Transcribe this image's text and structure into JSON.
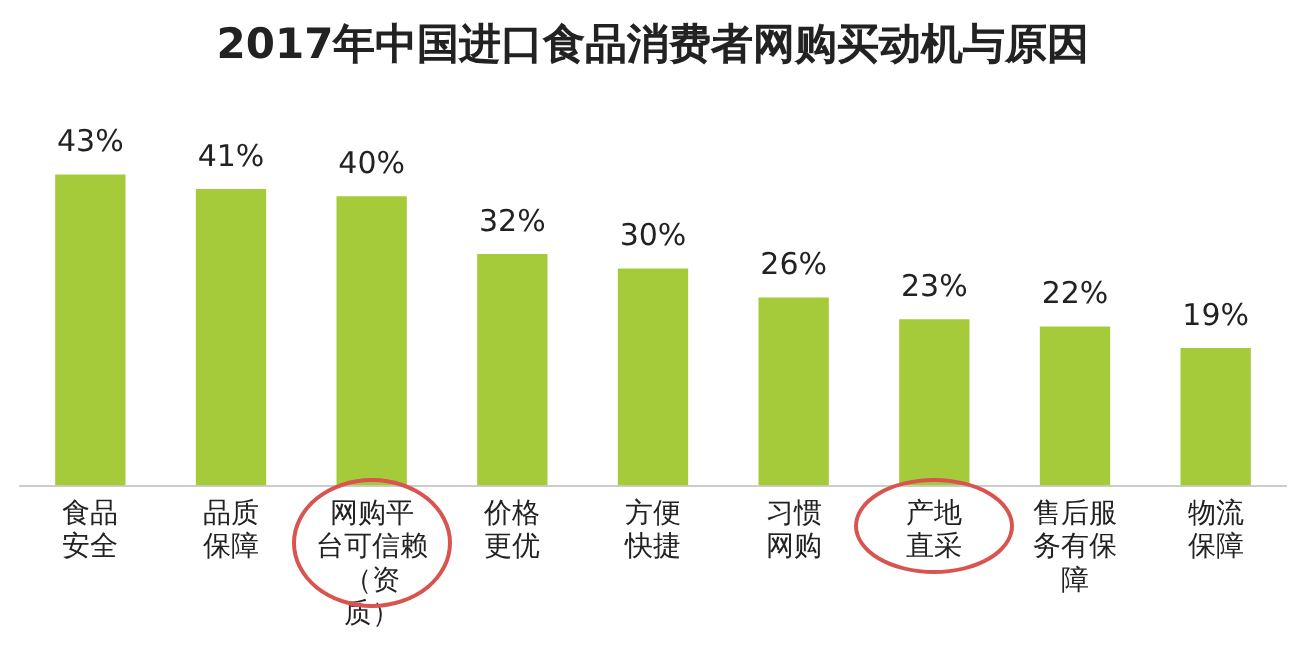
{
  "chart_data": {
    "type": "bar",
    "title": "2017年中国进口食品消费者网购买动机与原因",
    "categories": [
      "食品安全",
      "品质保障",
      "网购平台可信赖（资质）",
      "价格更优",
      "方便快捷",
      "习惯网购",
      "产地直采",
      "售后服务有保障",
      "物流保障"
    ],
    "values": [
      43,
      41,
      40,
      32,
      30,
      26,
      23,
      22,
      19
    ],
    "value_labels": [
      "43%",
      "41%",
      "40%",
      "32%",
      "30%",
      "26%",
      "23%",
      "22%",
      "19%"
    ],
    "color": "#a6cb3a",
    "tick_labels": "x",
    "grid": false,
    "legend": false
  }
}
